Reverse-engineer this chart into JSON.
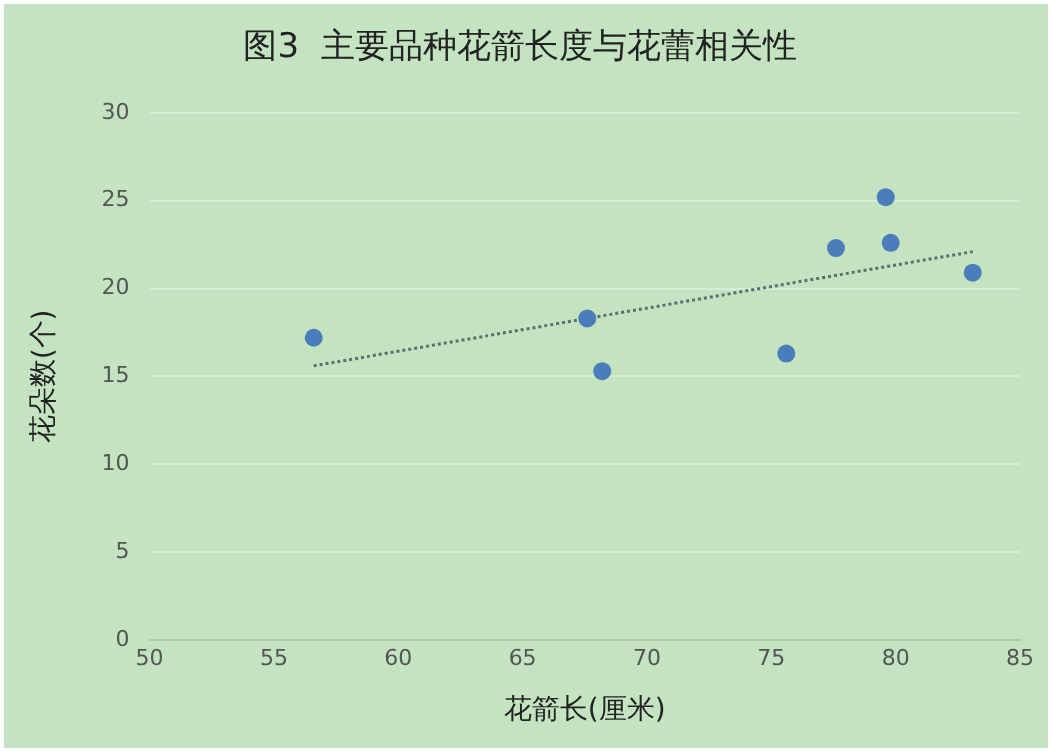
{
  "chart_data": {
    "type": "scatter",
    "title": "图3  主要品种花箭长度与花蕾相关性",
    "xlabel": "花箭长(厘米)",
    "ylabel": "花朵数(个)",
    "xlim": [
      50,
      85
    ],
    "xticks": [
      50,
      55,
      60,
      65,
      70,
      75,
      80,
      85
    ],
    "ylim": [
      0,
      30
    ],
    "yticks": [
      0,
      5,
      10,
      15,
      20,
      25,
      30
    ],
    "grid": "y",
    "legend": false,
    "marker": "circle",
    "series": [
      {
        "type": "scatter",
        "color": "#4a7ebb",
        "x": [
          56.6,
          67.6,
          68.2,
          75.6,
          77.6,
          79.6,
          79.8,
          83.1
        ],
        "values": [
          17.2,
          18.3,
          15.3,
          16.3,
          22.3,
          25.2,
          22.6,
          20.9
        ]
      },
      {
        "type": "line",
        "color": "#5a6f70",
        "line_style": "dotted",
        "marker": "none",
        "x": [
          56.6,
          83.1
        ],
        "values": [
          15.6,
          22.1
        ]
      }
    ]
  }
}
